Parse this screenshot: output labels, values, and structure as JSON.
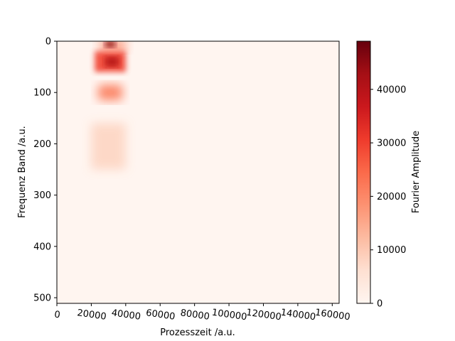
{
  "chart_data": {
    "type": "heatmap",
    "title": "",
    "xlabel": "Prozesszeit /a.u.",
    "ylabel": "Frequenz Band /a.u.",
    "xlim": [
      0,
      164000
    ],
    "ylim": [
      511,
      0
    ],
    "x_ticks": [
      0,
      20000,
      40000,
      60000,
      80000,
      100000,
      120000,
      140000,
      160000
    ],
    "x_tick_labels": [
      "0",
      "20000",
      "40000",
      "60000",
      "80000",
      "100000",
      "120000",
      "140000",
      "160000"
    ],
    "y_ticks": [
      0,
      100,
      200,
      300,
      400,
      500
    ],
    "y_tick_labels": [
      "0",
      "100",
      "200",
      "300",
      "400",
      "500"
    ],
    "colorbar": {
      "label": "Fourier Amplitude",
      "min": 0,
      "max": 49000,
      "ticks": [
        0,
        10000,
        20000,
        30000,
        40000
      ],
      "tick_labels": [
        "0",
        "10000",
        "20000",
        "30000",
        "40000"
      ],
      "colormap": "Reds",
      "colors": [
        "#fff5f0",
        "#fee0d2",
        "#fcbba1",
        "#fc9272",
        "#fb6a4a",
        "#ef3b2c",
        "#cb181d",
        "#a50f15",
        "#67000d"
      ]
    },
    "hotspots": [
      {
        "x_range": [
          25000,
          40000
        ],
        "y_range": [
          0,
          20
        ],
        "amplitude": 20000
      },
      {
        "x_range": [
          22000,
          40000
        ],
        "y_range": [
          20,
          60
        ],
        "amplitude": 30000
      },
      {
        "x_range": [
          24000,
          38000
        ],
        "y_range": [
          85,
          115
        ],
        "amplitude": 22000
      },
      {
        "x_range": [
          20000,
          40000
        ],
        "y_range": [
          160,
          250
        ],
        "amplitude": 8000
      },
      {
        "x_range": [
          28000,
          34000
        ],
        "y_range": [
          0,
          12
        ],
        "amplitude": 45000
      },
      {
        "x_range": [
          28000,
          36000
        ],
        "y_range": [
          30,
          50
        ],
        "amplitude": 40000
      }
    ]
  }
}
